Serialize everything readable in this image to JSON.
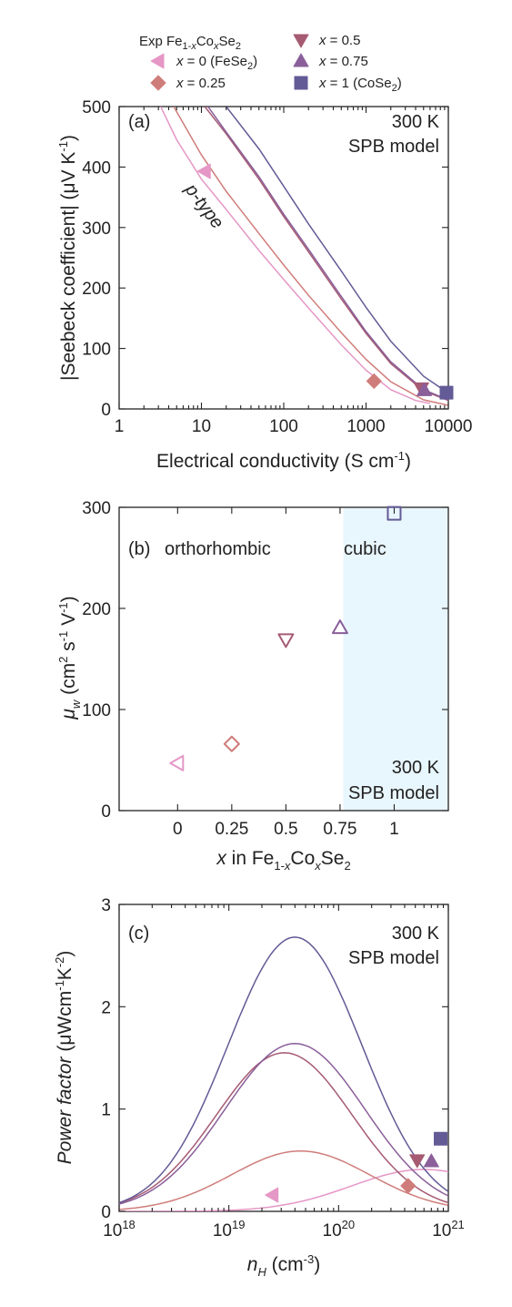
{
  "colors": {
    "x0": "#e597c6",
    "x025": "#cf7d7a",
    "x05": "#a65b73",
    "x075": "#8a5f9a",
    "x1": "#635b96",
    "cubic_shade": "#e8f6fd"
  },
  "legend": {
    "title_main": "Exp Fe",
    "title_sub1": "1-",
    "title_subx": "x",
    "title_co": "Co",
    "title_subx2": "x",
    "title_se": "Se",
    "title_sub2": "2",
    "items": [
      {
        "key": "x0",
        "marker": "triangle-left",
        "x_label": "x",
        "rest": " = 0 (FeSe",
        "sub": "2",
        "close": ")"
      },
      {
        "key": "x025",
        "marker": "diamond",
        "x_label": "x",
        "rest": " = 0.25",
        "sub": "",
        "close": ""
      },
      {
        "key": "x05",
        "marker": "triangle-down",
        "x_label": "x",
        "rest": " = 0.5",
        "sub": "",
        "close": ""
      },
      {
        "key": "x075",
        "marker": "triangle-up",
        "x_label": "x",
        "rest": " = 0.75",
        "sub": "",
        "close": ""
      },
      {
        "key": "x1",
        "marker": "square",
        "x_label": "x",
        "rest": " = 1 (CoSe",
        "sub": "2",
        "close": ")"
      }
    ]
  },
  "chart_data": [
    {
      "panel": "(a)",
      "type": "line",
      "annotation": [
        "300 K",
        "SPB model"
      ],
      "region_label": "p-type",
      "xlabel": "Electrical conductivity (S cm-1)",
      "ylabel": "|Seebeck coefficient| (μV K-1)",
      "xscale": "log",
      "xlim": [
        1,
        10000
      ],
      "ylim": [
        0,
        500
      ],
      "xticks": [
        1,
        10,
        100,
        1000,
        10000
      ],
      "xtick_labels": [
        "1",
        "10",
        "100",
        "1000",
        "10000"
      ],
      "yticks": [
        0,
        100,
        200,
        300,
        400,
        500
      ],
      "curves": [
        {
          "key": "x0",
          "points": [
            [
              3.2,
              500
            ],
            [
              5,
              445
            ],
            [
              10,
              380
            ],
            [
              20,
              330
            ],
            [
              50,
              262
            ],
            [
              100,
              214
            ],
            [
              200,
              167
            ],
            [
              500,
              106
            ],
            [
              1000,
              64
            ],
            [
              2000,
              32
            ],
            [
              4000,
              14
            ],
            [
              6000,
              9
            ]
          ]
        },
        {
          "key": "x025",
          "points": [
            [
              4.6,
              500
            ],
            [
              10,
              420
            ],
            [
              20,
              360
            ],
            [
              50,
              290
            ],
            [
              100,
              238
            ],
            [
              200,
              188
            ],
            [
              500,
              126
            ],
            [
              1000,
              82
            ],
            [
              2000,
              45
            ],
            [
              5000,
              15
            ],
            [
              10000,
              6
            ]
          ]
        },
        {
          "key": "x05",
          "points": [
            [
              11,
              500
            ],
            [
              20,
              455
            ],
            [
              50,
              380
            ],
            [
              100,
              318
            ],
            [
              200,
              260
            ],
            [
              500,
              182
            ],
            [
              1000,
              125
            ],
            [
              2000,
              75
            ],
            [
              5000,
              30
            ],
            [
              10000,
              14
            ]
          ]
        },
        {
          "key": "x075",
          "points": [
            [
              12,
              500
            ],
            [
              20,
              458
            ],
            [
              50,
              384
            ],
            [
              100,
              322
            ],
            [
              200,
              264
            ],
            [
              500,
              186
            ],
            [
              1000,
              128
            ],
            [
              2000,
              78
            ],
            [
              5000,
              32
            ],
            [
              10000,
              15
            ]
          ]
        },
        {
          "key": "x1",
          "points": [
            [
              20,
              500
            ],
            [
              50,
              430
            ],
            [
              100,
              368
            ],
            [
              200,
              306
            ],
            [
              500,
              228
            ],
            [
              1000,
              168
            ],
            [
              2000,
              112
            ],
            [
              5000,
              54
            ],
            [
              10000,
              26
            ]
          ]
        }
      ],
      "experiment": [
        {
          "key": "x0",
          "marker": "triangle-left",
          "x": 11,
          "y": 393
        },
        {
          "key": "x025",
          "marker": "diamond",
          "x": 1250,
          "y": 46
        },
        {
          "key": "x05",
          "marker": "triangle-down",
          "x": 4700,
          "y": 34
        },
        {
          "key": "x075",
          "marker": "triangle-up",
          "x": 5100,
          "y": 31
        },
        {
          "key": "x1",
          "marker": "square",
          "x": 9500,
          "y": 27
        }
      ]
    },
    {
      "panel": "(b)",
      "type": "scatter",
      "annotation": [
        "300 K",
        "SPB model"
      ],
      "region_labels": [
        "orthorhombic",
        "cubic"
      ],
      "cubic_from": 0.765,
      "xlabel": "x in Fe1-xCoxSe2",
      "ylabel": "μw (cm2 s-1 V-1)",
      "xlim": [
        -0.27,
        1.25
      ],
      "ylim": [
        0,
        300
      ],
      "xticks": [
        0,
        0.25,
        0.5,
        0.75,
        1
      ],
      "xtick_labels": [
        "0",
        "0.25",
        "0.5",
        "0.75",
        "1"
      ],
      "yticks": [
        0,
        100,
        200,
        300
      ],
      "points": [
        {
          "key": "x0",
          "marker": "triangle-left",
          "x": 0,
          "y": 47
        },
        {
          "key": "x025",
          "marker": "diamond",
          "x": 0.25,
          "y": 66
        },
        {
          "key": "x05",
          "marker": "triangle-down",
          "x": 0.5,
          "y": 169
        },
        {
          "key": "x075",
          "marker": "triangle-up",
          "x": 0.75,
          "y": 181
        },
        {
          "key": "x1",
          "marker": "square",
          "x": 1,
          "y": 294
        }
      ]
    },
    {
      "panel": "(c)",
      "type": "line",
      "annotation": [
        "300 K",
        "SPB model"
      ],
      "xlabel": "nH (cm-3)",
      "ylabel": "Power factor (μWcm-1K-2)",
      "xscale": "log",
      "xlim": [
        1e+18,
        1e+21
      ],
      "ylim": [
        0,
        3
      ],
      "xtick_exponents": [
        18,
        19,
        20,
        21
      ],
      "xtick_base": "10",
      "yticks": [
        0,
        1,
        2,
        3
      ],
      "curves": [
        {
          "key": "x0",
          "peak_n": 6e+20,
          "peak_pf": 0.41,
          "sigma": 0.66
        },
        {
          "key": "x025",
          "peak_n": 4.5e+19,
          "peak_pf": 0.59,
          "sigma": 0.63
        },
        {
          "key": "x05",
          "peak_n": 3.2e+19,
          "peak_pf": 1.55,
          "sigma": 0.62
        },
        {
          "key": "x075",
          "peak_n": 4e+19,
          "peak_pf": 1.64,
          "sigma": 0.64
        },
        {
          "key": "x1",
          "peak_n": 4e+19,
          "peak_pf": 2.68,
          "sigma": 0.61
        }
      ],
      "experiment": [
        {
          "key": "x0",
          "marker": "triangle-left",
          "x": 2.5e+19,
          "y": 0.16
        },
        {
          "key": "x025",
          "marker": "diamond",
          "x": 4.3e+20,
          "y": 0.25
        },
        {
          "key": "x05",
          "marker": "triangle-down",
          "x": 5.2e+20,
          "y": 0.5
        },
        {
          "key": "x075",
          "marker": "triangle-up",
          "x": 7e+20,
          "y": 0.49
        },
        {
          "key": "x1",
          "marker": "square",
          "x": 8.5e+20,
          "y": 0.71
        }
      ]
    }
  ]
}
